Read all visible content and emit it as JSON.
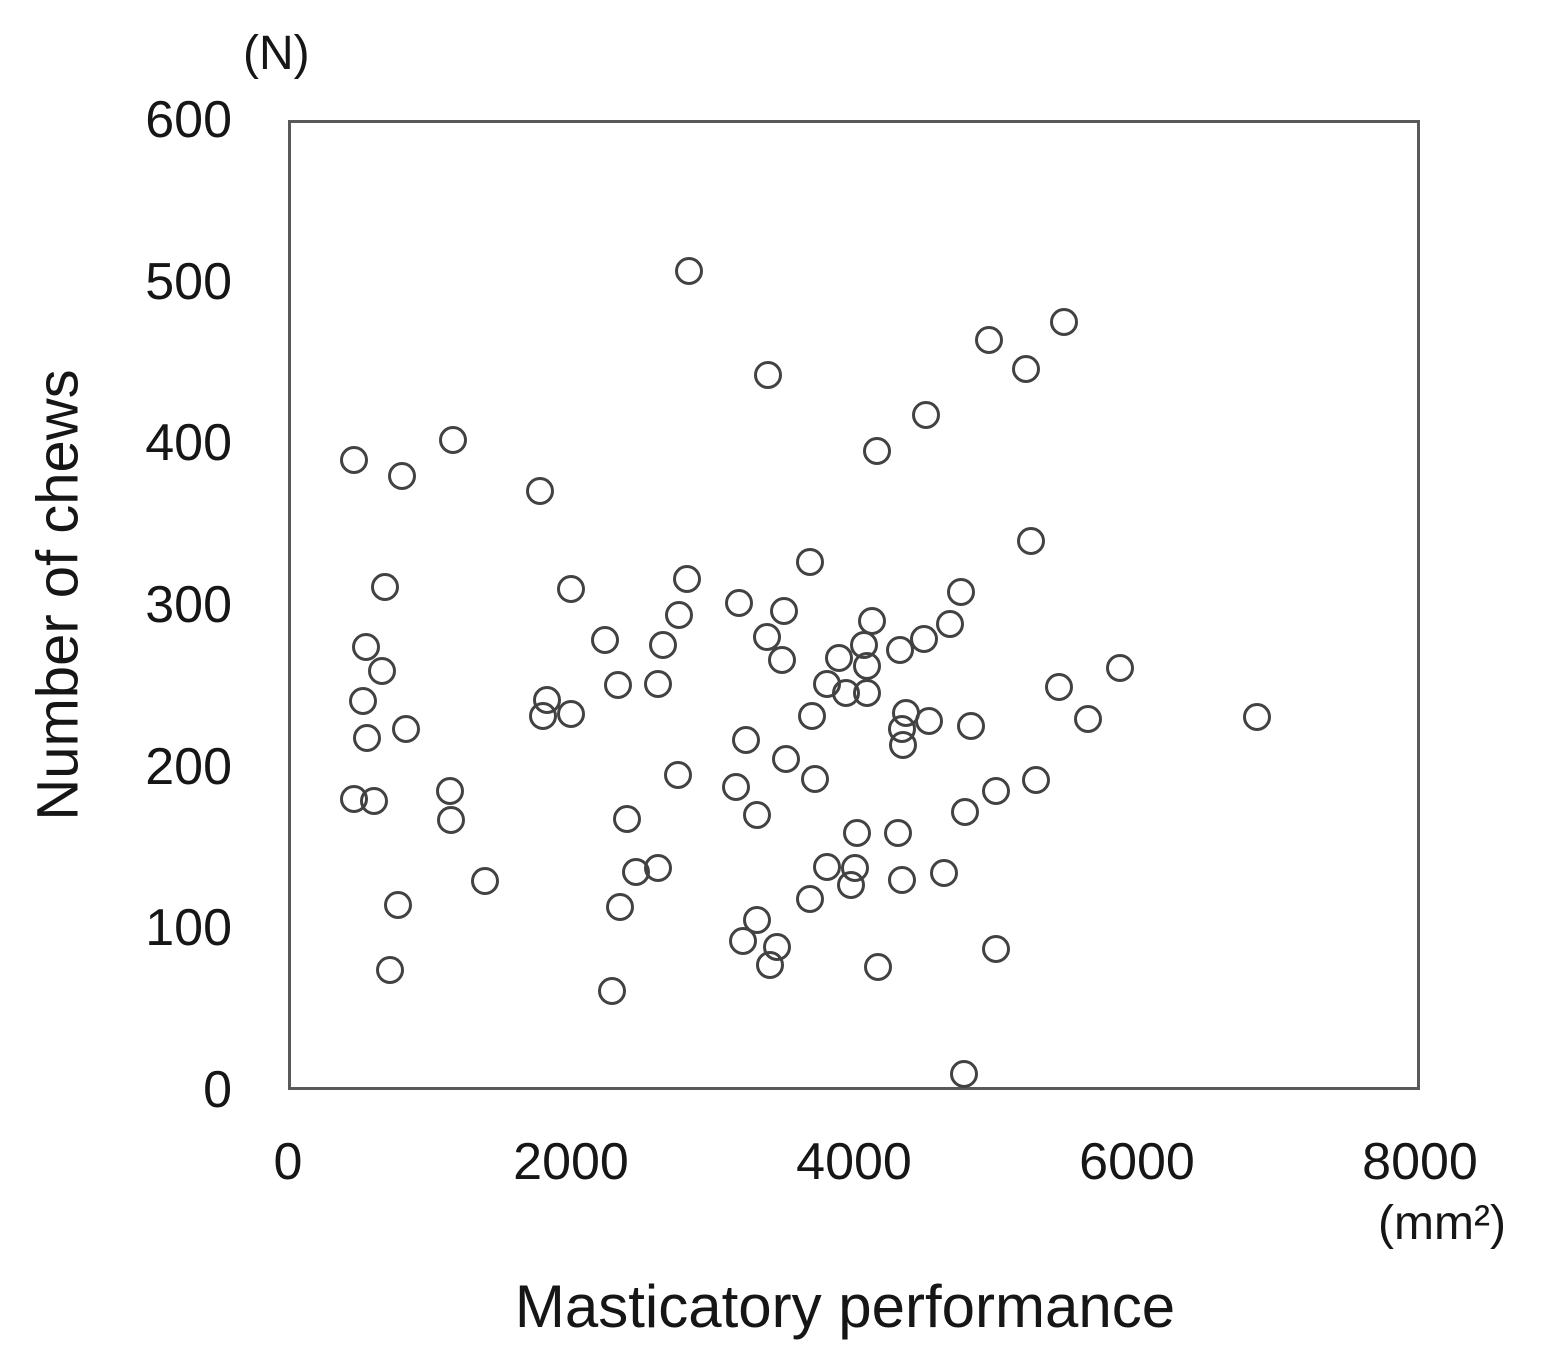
{
  "chart_data": {
    "type": "scatter",
    "title": "",
    "xlabel": "Masticatory performance",
    "ylabel": "Number of chews",
    "x_unit_label": "(mm²)",
    "y_unit_label": "(N)",
    "xlim": [
      0,
      8000
    ],
    "ylim": [
      0,
      600
    ],
    "x_ticks": [
      0,
      2000,
      4000,
      6000,
      8000
    ],
    "y_ticks": [
      0,
      100,
      200,
      300,
      400,
      500,
      600
    ],
    "grid": false,
    "legend": "none",
    "marker": "open-circle",
    "marker_color": "#424242",
    "points": [
      [
        450,
        390
      ],
      [
        790,
        380
      ],
      [
        1150,
        403
      ],
      [
        1770,
        371
      ],
      [
        2830,
        508
      ],
      [
        3390,
        443
      ],
      [
        4160,
        396
      ],
      [
        4510,
        418
      ],
      [
        4960,
        465
      ],
      [
        5220,
        447
      ],
      [
        5490,
        476
      ],
      [
        5260,
        340
      ],
      [
        3690,
        327
      ],
      [
        670,
        311
      ],
      [
        530,
        274
      ],
      [
        650,
        259
      ],
      [
        510,
        240
      ],
      [
        540,
        217
      ],
      [
        820,
        223
      ],
      [
        1990,
        310
      ],
      [
        2230,
        278
      ],
      [
        2320,
        250
      ],
      [
        2610,
        251
      ],
      [
        2640,
        275
      ],
      [
        2760,
        294
      ],
      [
        2810,
        316
      ],
      [
        3180,
        301
      ],
      [
        3500,
        296
      ],
      [
        3380,
        280
      ],
      [
        3490,
        266
      ],
      [
        3890,
        267
      ],
      [
        3810,
        251
      ],
      [
        3940,
        245
      ],
      [
        4090,
        245
      ],
      [
        4070,
        275
      ],
      [
        4090,
        262
      ],
      [
        4130,
        290
      ],
      [
        4330,
        272
      ],
      [
        4500,
        279
      ],
      [
        4680,
        288
      ],
      [
        4760,
        308
      ],
      [
        5460,
        249
      ],
      [
        5890,
        261
      ],
      [
        1790,
        231
      ],
      [
        1820,
        241
      ],
      [
        1990,
        232
      ],
      [
        3230,
        216
      ],
      [
        3700,
        231
      ],
      [
        3520,
        204
      ],
      [
        4370,
        233
      ],
      [
        4530,
        228
      ],
      [
        4340,
        223
      ],
      [
        4350,
        213
      ],
      [
        4830,
        225
      ],
      [
        5660,
        229
      ],
      [
        6860,
        230
      ],
      [
        450,
        179
      ],
      [
        590,
        178
      ],
      [
        1130,
        184
      ],
      [
        1140,
        166
      ],
      [
        3160,
        187
      ],
      [
        3310,
        169
      ],
      [
        3720,
        192
      ],
      [
        2750,
        194
      ],
      [
        2390,
        167
      ],
      [
        4020,
        158
      ],
      [
        4310,
        158
      ],
      [
        4790,
        171
      ],
      [
        5010,
        184
      ],
      [
        5290,
        191
      ],
      [
        760,
        113
      ],
      [
        1380,
        128
      ],
      [
        2340,
        112
      ],
      [
        2450,
        134
      ],
      [
        2610,
        136
      ],
      [
        3690,
        117
      ],
      [
        3810,
        137
      ],
      [
        4010,
        136
      ],
      [
        3980,
        126
      ],
      [
        4340,
        129
      ],
      [
        4640,
        133
      ],
      [
        3310,
        104
      ],
      [
        3210,
        91
      ],
      [
        3450,
        87
      ],
      [
        3400,
        76
      ],
      [
        4170,
        75
      ],
      [
        5010,
        86
      ],
      [
        2280,
        60
      ],
      [
        700,
        73
      ],
      [
        4780,
        8
      ]
    ]
  }
}
